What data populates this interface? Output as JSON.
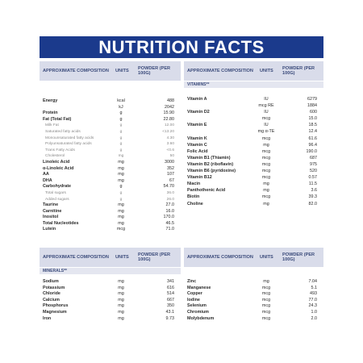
{
  "title": "NUTRITION FACTS",
  "header": {
    "composition": "APPROXIMATE COMPOSITION",
    "units": "UNITS",
    "powder": "POWDER (per 100g)"
  },
  "vitamins_label": "VITAMINS**",
  "minerals_label": "MINERALS**",
  "main": [
    {
      "name": "Energy",
      "unit": "kcal",
      "value": "488",
      "style": "b"
    },
    {
      "name": "",
      "unit": "kJ",
      "value": "2042",
      "style": "b"
    },
    {
      "name": "Protein",
      "unit": "g",
      "value": "15.90",
      "style": "b"
    },
    {
      "name": "Fat (Total Fat)",
      "unit": "g",
      "value": "22.80",
      "style": "b"
    },
    {
      "name": "Milk Fat",
      "unit": "g",
      "value": "12.00",
      "style": "sub"
    },
    {
      "name": "Saturated fatty acids",
      "unit": "g",
      "value": "<13.20",
      "style": "sub"
    },
    {
      "name": "Monounsaturated fatty acids",
      "unit": "g",
      "value": "4.30",
      "style": "sub"
    },
    {
      "name": "Polyunsaturated fatty acids",
      "unit": "g",
      "value": "3.60",
      "style": "sub"
    },
    {
      "name": "Trans Fatty Acids",
      "unit": "g",
      "value": "<0.6",
      "style": "sub"
    },
    {
      "name": "Cholesterol",
      "unit": "mg",
      "value": "50",
      "style": "sub"
    },
    {
      "name": "Linoleic Acid",
      "unit": "mg",
      "value": "3000",
      "style": "b"
    },
    {
      "name": "α-Linoleic Acid",
      "unit": "mg",
      "value": "352",
      "style": "b"
    },
    {
      "name": "AA",
      "unit": "mg",
      "value": "107",
      "style": "b"
    },
    {
      "name": "DHA",
      "unit": "mg",
      "value": "67",
      "style": "b"
    },
    {
      "name": "Carbohydrate",
      "unit": "g",
      "value": "54.70",
      "style": "b"
    },
    {
      "name": "Total sugars",
      "unit": "g",
      "value": "36.0",
      "style": "sub"
    },
    {
      "name": "Added sugars",
      "unit": "g",
      "value": "26.0",
      "style": "sub"
    },
    {
      "name": "Taurine",
      "unit": "mg",
      "value": "27.0",
      "style": "b"
    },
    {
      "name": "Carnitine",
      "unit": "mg",
      "value": "16.0",
      "style": "b"
    },
    {
      "name": "Inositol",
      "unit": "mg",
      "value": "170.0",
      "style": "b"
    },
    {
      "name": "Total Nucleotides",
      "unit": "mg",
      "value": "46.5",
      "style": "b"
    },
    {
      "name": "Lutein",
      "unit": "mcg",
      "value": "71.0",
      "style": "b"
    }
  ],
  "vitamins": [
    {
      "name": "Vitamin A",
      "unit": "IU",
      "value": "6279"
    },
    {
      "name": "",
      "unit": "mcg RE",
      "value": "1884"
    },
    {
      "name": "Vitamin D2",
      "unit": "IU",
      "value": "600"
    },
    {
      "name": "",
      "unit": "mcg",
      "value": "15.0"
    },
    {
      "name": "Vitamin E",
      "unit": "IU",
      "value": "18.5"
    },
    {
      "name": "",
      "unit": "mg α-TE",
      "value": "12.4"
    },
    {
      "name": "Vitamin K",
      "unit": "mcg",
      "value": "61.6"
    },
    {
      "name": "Vitamin C",
      "unit": "mg",
      "value": "96.4"
    },
    {
      "name": "Folic Acid",
      "unit": "mcg",
      "value": "190.0"
    },
    {
      "name": "Vitamin B1 (Thiamin)",
      "unit": "mcg",
      "value": "687"
    },
    {
      "name": "Vitamin B2 (riboflavin)",
      "unit": "mcg",
      "value": "975"
    },
    {
      "name": "Vitamin B6 (pyridoxine)",
      "unit": "mcg",
      "value": "520"
    },
    {
      "name": "Vitamin B12",
      "unit": "mcg",
      "value": "0.57"
    },
    {
      "name": "Niacin",
      "unit": "mg",
      "value": "11.5"
    },
    {
      "name": "Panthothenic Acid",
      "unit": "mg",
      "value": "3.6"
    },
    {
      "name": "Biotin",
      "unit": "mcg",
      "value": "39.3"
    },
    {
      "name": "Choline",
      "unit": "mg",
      "value": "82.0"
    }
  ],
  "minerals_left": [
    {
      "name": "Sodium",
      "unit": "mg",
      "value": "341"
    },
    {
      "name": "Potassium",
      "unit": "mg",
      "value": "616"
    },
    {
      "name": "Chloride",
      "unit": "mg",
      "value": "514"
    },
    {
      "name": "Calcium",
      "unit": "mg",
      "value": "667"
    },
    {
      "name": "Phosphorus",
      "unit": "mg",
      "value": "350"
    },
    {
      "name": "Magnesium",
      "unit": "mg",
      "value": "43.1"
    },
    {
      "name": "Iron",
      "unit": "mg",
      "value": "9.73"
    }
  ],
  "minerals_right": [
    {
      "name": "Zinc",
      "unit": "mg",
      "value": "7.04"
    },
    {
      "name": "Manganese",
      "unit": "mcg",
      "value": "5.1"
    },
    {
      "name": "Copper",
      "unit": "mcg",
      "value": "493"
    },
    {
      "name": "Iodine",
      "unit": "mcg",
      "value": "77.0"
    },
    {
      "name": "Selenium",
      "unit": "mcg",
      "value": "24.3"
    },
    {
      "name": "Chromium",
      "unit": "mcg",
      "value": "1.0"
    },
    {
      "name": "Molybdenum",
      "unit": "mcg",
      "value": "2.0"
    }
  ]
}
